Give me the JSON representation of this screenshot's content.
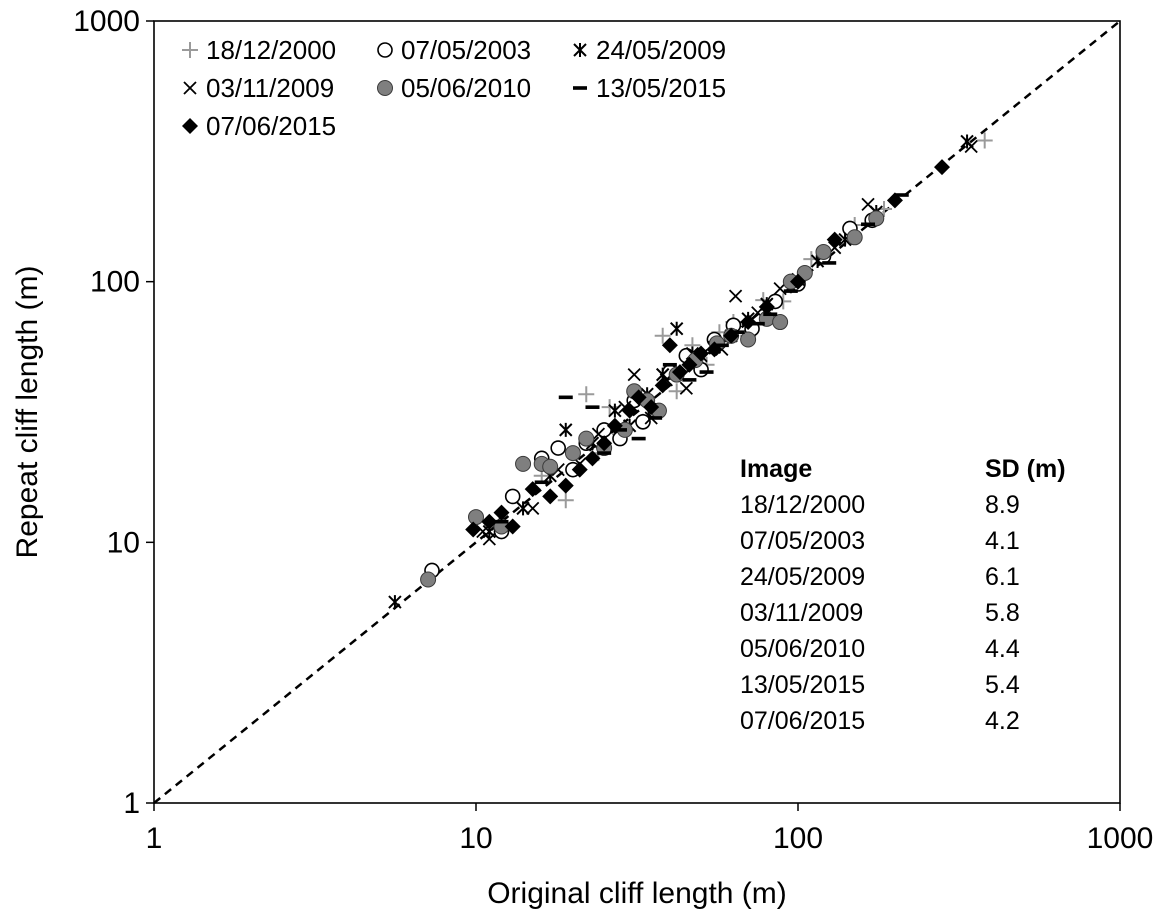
{
  "chart_data": {
    "type": "scatter",
    "xlabel": "Original cliff length (m)",
    "ylabel": "Repeat cliff length (m)",
    "xscale": "log",
    "yscale": "log",
    "xlim": [
      1,
      1000
    ],
    "ylim": [
      1,
      1000
    ],
    "x_ticks": [
      "1",
      "10",
      "100",
      "1000"
    ],
    "y_ticks": [
      "1",
      "10",
      "100",
      "1000"
    ],
    "grid": false,
    "legend_position": "top-left",
    "reference_line": {
      "style": "dashed",
      "from": [
        1,
        1
      ],
      "to": [
        1000,
        1000
      ]
    },
    "series": [
      {
        "name": "18/12/2000",
        "marker": "plus",
        "color": "#9a9a9a",
        "points": [
          [
            19,
            14.5
          ],
          [
            22,
            37
          ],
          [
            24,
            22
          ],
          [
            28,
            26
          ],
          [
            33,
            29
          ],
          [
            38,
            62
          ],
          [
            42,
            38
          ],
          [
            47,
            57
          ],
          [
            52,
            48
          ],
          [
            57,
            64
          ],
          [
            63,
            70
          ],
          [
            70,
            62
          ],
          [
            78,
            85
          ],
          [
            90,
            84
          ],
          [
            110,
            122
          ],
          [
            150,
            165
          ],
          [
            185,
            190
          ],
          [
            380,
            348
          ],
          [
            16,
            18
          ],
          [
            26,
            33
          ]
        ]
      },
      {
        "name": "07/05/2003",
        "marker": "circle-open",
        "color": "#000000",
        "points": [
          [
            7.3,
            7.8
          ],
          [
            12,
            11
          ],
          [
            13,
            15
          ],
          [
            16,
            21
          ],
          [
            18,
            23
          ],
          [
            20,
            19
          ],
          [
            22,
            24
          ],
          [
            25,
            27
          ],
          [
            28,
            25
          ],
          [
            31,
            35
          ],
          [
            33,
            29
          ],
          [
            36,
            32
          ],
          [
            40,
            45
          ],
          [
            45,
            52
          ],
          [
            50,
            46
          ],
          [
            55,
            60
          ],
          [
            63,
            68
          ],
          [
            72,
            66
          ],
          [
            85,
            84
          ],
          [
            100,
            98
          ],
          [
            120,
            125
          ],
          [
            145,
            160
          ],
          [
            170,
            172
          ]
        ]
      },
      {
        "name": "24/05/2009",
        "marker": "asterisk",
        "color": "#000000",
        "points": [
          [
            5.6,
            5.9
          ],
          [
            11,
            11
          ],
          [
            14,
            13.5
          ],
          [
            17,
            18
          ],
          [
            19,
            27
          ],
          [
            23,
            24
          ],
          [
            27,
            32
          ],
          [
            30,
            28
          ],
          [
            34,
            37
          ],
          [
            38,
            44
          ],
          [
            42,
            66
          ],
          [
            47,
            53
          ],
          [
            55,
            56
          ],
          [
            62,
            62
          ],
          [
            70,
            72
          ],
          [
            80,
            82
          ],
          [
            95,
            96
          ],
          [
            115,
            120
          ],
          [
            140,
            145
          ],
          [
            175,
            185
          ],
          [
            335,
            345
          ]
        ]
      },
      {
        "name": "03/11/2009",
        "marker": "x",
        "color": "#000000",
        "points": [
          [
            10.5,
            11
          ],
          [
            11,
            10.3
          ],
          [
            12,
            12.5
          ],
          [
            15,
            13.5
          ],
          [
            18,
            19
          ],
          [
            21,
            20
          ],
          [
            24,
            26
          ],
          [
            29,
            33
          ],
          [
            31,
            44
          ],
          [
            35,
            30
          ],
          [
            39,
            42
          ],
          [
            45,
            39
          ],
          [
            50,
            52
          ],
          [
            58,
            55
          ],
          [
            64,
            88
          ],
          [
            75,
            76
          ],
          [
            88,
            94
          ],
          [
            100,
            102
          ],
          [
            130,
            135
          ],
          [
            165,
            198
          ],
          [
            345,
            330
          ]
        ]
      },
      {
        "name": "05/06/2010",
        "marker": "circle-filled",
        "color": "#7f7f7f",
        "points": [
          [
            7.1,
            7.2
          ],
          [
            10,
            12.5
          ],
          [
            12,
            11.5
          ],
          [
            14,
            20
          ],
          [
            16,
            20
          ],
          [
            17,
            19.5
          ],
          [
            20,
            22
          ],
          [
            22,
            25
          ],
          [
            25,
            23
          ],
          [
            29,
            27
          ],
          [
            31,
            38
          ],
          [
            34,
            35
          ],
          [
            37,
            32
          ],
          [
            42,
            44
          ],
          [
            48,
            50
          ],
          [
            56,
            58
          ],
          [
            62,
            62
          ],
          [
            70,
            60
          ],
          [
            80,
            72
          ],
          [
            88,
            70
          ],
          [
            95,
            100
          ],
          [
            105,
            108
          ],
          [
            120,
            130
          ],
          [
            150,
            148
          ],
          [
            175,
            175
          ]
        ]
      },
      {
        "name": "13/05/2015",
        "marker": "dash",
        "color": "#000000",
        "points": [
          [
            12,
            12
          ],
          [
            16,
            17
          ],
          [
            19,
            36
          ],
          [
            23,
            33
          ],
          [
            25,
            22
          ],
          [
            28,
            27
          ],
          [
            32,
            25
          ],
          [
            36,
            30
          ],
          [
            40,
            48
          ],
          [
            46,
            42
          ],
          [
            52,
            45
          ],
          [
            58,
            57
          ],
          [
            65,
            64
          ],
          [
            75,
            69
          ],
          [
            82,
            75
          ],
          [
            95,
            92
          ],
          [
            125,
            118
          ],
          [
            165,
            166
          ],
          [
            210,
            215
          ]
        ]
      },
      {
        "name": "07/06/2015",
        "marker": "diamond-filled",
        "color": "#000000",
        "points": [
          [
            9.8,
            11.2
          ],
          [
            11,
            12
          ],
          [
            12,
            13
          ],
          [
            13,
            11.5
          ],
          [
            15,
            16
          ],
          [
            17,
            15
          ],
          [
            19,
            16.5
          ],
          [
            21,
            19
          ],
          [
            23,
            21
          ],
          [
            25,
            24
          ],
          [
            27,
            28
          ],
          [
            30,
            32
          ],
          [
            32,
            36
          ],
          [
            35,
            33
          ],
          [
            38,
            40
          ],
          [
            40,
            57
          ],
          [
            43,
            45
          ],
          [
            46,
            48
          ],
          [
            50,
            53
          ],
          [
            55,
            55
          ],
          [
            62,
            62
          ],
          [
            70,
            70
          ],
          [
            80,
            80
          ],
          [
            100,
            100
          ],
          [
            130,
            145
          ],
          [
            200,
            205
          ],
          [
            280,
            275
          ]
        ]
      }
    ],
    "sd_table": {
      "header": [
        "Image",
        "SD (m)"
      ],
      "rows": [
        [
          "18/12/2000",
          "8.9"
        ],
        [
          "07/05/2003",
          "4.1"
        ],
        [
          "24/05/2009",
          "6.1"
        ],
        [
          "03/11/2009",
          "5.8"
        ],
        [
          "05/06/2010",
          "4.4"
        ],
        [
          "13/05/2015",
          "5.4"
        ],
        [
          "07/06/2015",
          "4.2"
        ]
      ]
    }
  }
}
